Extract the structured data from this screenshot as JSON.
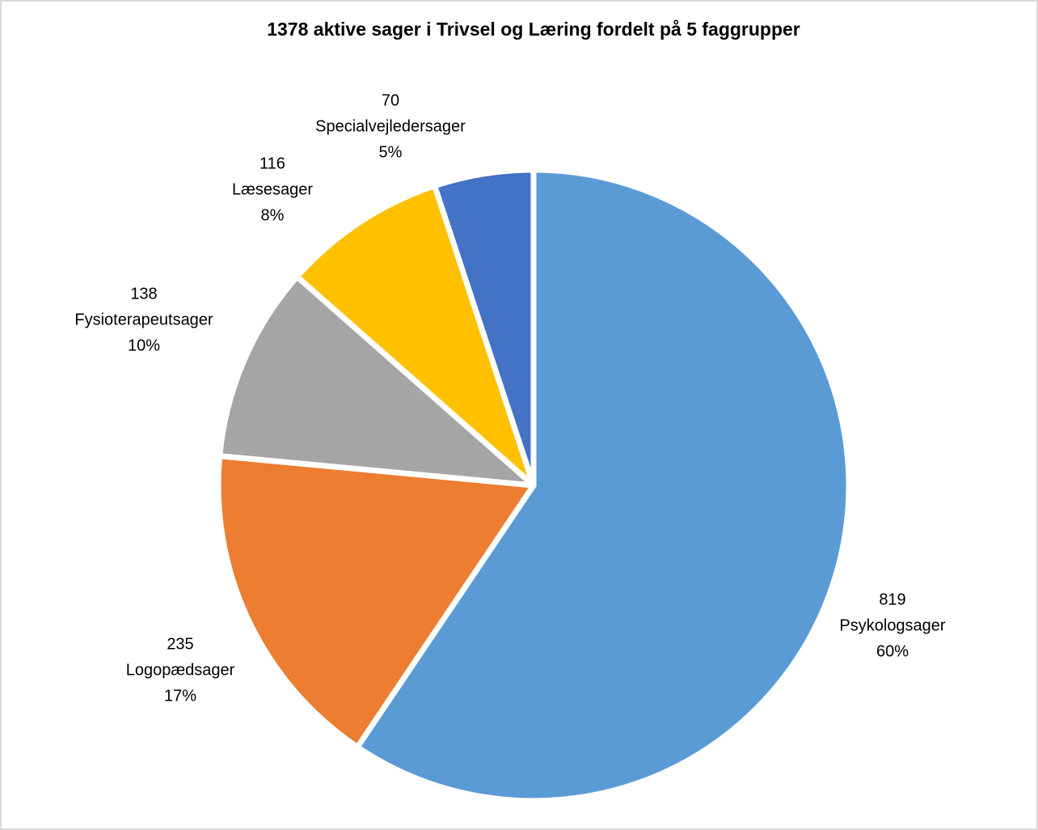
{
  "chart_data": {
    "type": "pie",
    "title": "1378 aktive sager i Trivsel og Læring fordelt på 5 faggrupper",
    "categories": [
      "Psykologsager",
      "Logopædsager",
      "Fysioterapeutsager",
      "Læsesager",
      "Specialvejledersager"
    ],
    "values": [
      819,
      235,
      138,
      116,
      70
    ],
    "percentages": [
      60,
      17,
      10,
      8,
      5
    ],
    "percentage_labels": [
      "60%",
      "17%",
      "10%",
      "8%",
      "5%"
    ],
    "colors": [
      "#5b9bd5",
      "#ed7d31",
      "#a5a5a5",
      "#ffc000",
      "#4472c4"
    ]
  }
}
